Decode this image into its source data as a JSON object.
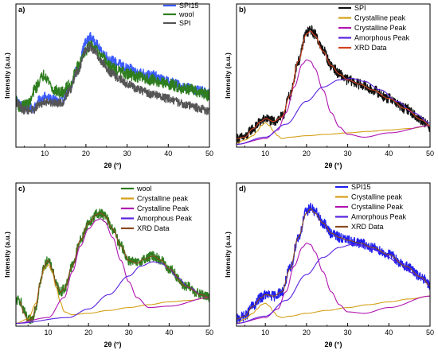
{
  "figure": {
    "background": "#ffffff"
  },
  "chart_data": [
    {
      "panel_label": "a)",
      "type": "line",
      "xlabel": "2θ (°)",
      "ylabel": "Intensity (a.u.)",
      "xlim": [
        3,
        50
      ],
      "ylim": [
        0,
        1
      ],
      "xticks": [
        10,
        20,
        30,
        40,
        50
      ],
      "grid": false,
      "legend_position": "top-right",
      "series": [
        {
          "name": "SPI15",
          "color": "#3b5bff",
          "noise": 0.035,
          "kind": "xrd",
          "x": [
            3,
            5,
            7,
            9,
            10,
            12,
            14,
            16,
            18,
            20,
            21,
            22,
            24,
            26,
            28,
            30,
            33,
            36,
            40,
            44,
            48,
            50
          ],
          "y": [
            0.33,
            0.27,
            0.27,
            0.33,
            0.35,
            0.33,
            0.32,
            0.4,
            0.55,
            0.73,
            0.77,
            0.74,
            0.66,
            0.61,
            0.58,
            0.55,
            0.52,
            0.5,
            0.46,
            0.42,
            0.39,
            0.37
          ]
        },
        {
          "name": "wool",
          "color": "#2e7d1e",
          "noise": 0.04,
          "kind": "xrd",
          "x": [
            3,
            4,
            6,
            8,
            9,
            10,
            11,
            12,
            14,
            16,
            18,
            20,
            21,
            22,
            24,
            26,
            28,
            30,
            33,
            36,
            40,
            44,
            48,
            50
          ],
          "y": [
            0.32,
            0.28,
            0.3,
            0.42,
            0.48,
            0.51,
            0.46,
            0.4,
            0.38,
            0.43,
            0.56,
            0.68,
            0.71,
            0.69,
            0.62,
            0.56,
            0.53,
            0.51,
            0.49,
            0.47,
            0.44,
            0.41,
            0.38,
            0.36
          ]
        },
        {
          "name": "SPI",
          "color": "#555555",
          "noise": 0.03,
          "kind": "xrd",
          "x": [
            3,
            5,
            7,
            9,
            10,
            12,
            14,
            16,
            18,
            20,
            21,
            22,
            24,
            26,
            28,
            30,
            33,
            36,
            40,
            44,
            48,
            50
          ],
          "y": [
            0.31,
            0.26,
            0.26,
            0.3,
            0.32,
            0.31,
            0.31,
            0.39,
            0.53,
            0.68,
            0.7,
            0.67,
            0.59,
            0.52,
            0.48,
            0.44,
            0.4,
            0.37,
            0.34,
            0.3,
            0.27,
            0.25
          ]
        }
      ]
    },
    {
      "panel_label": "b)",
      "type": "line",
      "xlabel": "2θ (°)",
      "ylabel": "Intensity (a.u.)",
      "xlim": [
        3,
        50
      ],
      "ylim": [
        0,
        1
      ],
      "xticks": [
        10,
        20,
        30,
        40,
        50
      ],
      "grid": false,
      "legend_position": "top-right",
      "series": [
        {
          "name": "SPI",
          "color": "#111111",
          "noise": 0.035,
          "kind": "xrd",
          "x": [
            3,
            5,
            7,
            9,
            10,
            12,
            14,
            16,
            18,
            20,
            21,
            22,
            24,
            26,
            28,
            30,
            33,
            36,
            40,
            44,
            48,
            50
          ],
          "y": [
            0.06,
            0.07,
            0.13,
            0.18,
            0.2,
            0.18,
            0.21,
            0.36,
            0.6,
            0.8,
            0.82,
            0.79,
            0.68,
            0.57,
            0.51,
            0.47,
            0.44,
            0.4,
            0.34,
            0.27,
            0.19,
            0.14
          ]
        },
        {
          "name": "Crystalline peak",
          "color": "#d4a017",
          "kind": "fit",
          "x": [
            3,
            5,
            7,
            8,
            9,
            10,
            11,
            12,
            13,
            14,
            16,
            20,
            25,
            30,
            35,
            40,
            45,
            50
          ],
          "y": [
            0.03,
            0.05,
            0.08,
            0.11,
            0.15,
            0.17,
            0.15,
            0.11,
            0.08,
            0.06,
            0.07,
            0.08,
            0.09,
            0.1,
            0.11,
            0.12,
            0.13,
            0.15
          ]
        },
        {
          "name": "Crystalline Peak",
          "color": "#b015b0",
          "kind": "fit",
          "x": [
            3,
            10,
            13,
            15,
            17,
            19,
            20,
            21,
            22,
            24,
            26,
            28,
            30,
            34,
            40,
            50
          ],
          "y": [
            0.02,
            0.06,
            0.12,
            0.24,
            0.42,
            0.58,
            0.61,
            0.6,
            0.55,
            0.4,
            0.24,
            0.14,
            0.09,
            0.07,
            0.1,
            0.15
          ]
        },
        {
          "name": "Amorphous Peak",
          "color": "#5a22e0",
          "kind": "fit",
          "x": [
            3,
            10,
            15,
            20,
            24,
            28,
            31,
            34,
            38,
            42,
            46,
            50
          ],
          "y": [
            0.02,
            0.07,
            0.16,
            0.32,
            0.42,
            0.47,
            0.48,
            0.46,
            0.4,
            0.32,
            0.24,
            0.17
          ]
        },
        {
          "name": "XRD Data",
          "color": "#d2421e",
          "kind": "fit",
          "x": [
            3,
            5,
            7,
            9,
            10,
            12,
            14,
            16,
            18,
            20,
            21,
            22,
            24,
            26,
            28,
            30,
            33,
            36,
            40,
            44,
            48,
            50
          ],
          "y": [
            0.06,
            0.07,
            0.13,
            0.18,
            0.2,
            0.18,
            0.21,
            0.36,
            0.6,
            0.79,
            0.81,
            0.78,
            0.67,
            0.57,
            0.51,
            0.47,
            0.44,
            0.4,
            0.34,
            0.27,
            0.19,
            0.15
          ]
        }
      ]
    },
    {
      "panel_label": "c)",
      "type": "line",
      "xlabel": "2θ (°)",
      "ylabel": "Intensity (a.u.)",
      "xlim": [
        2,
        50
      ],
      "ylim": [
        0,
        1
      ],
      "xticks": [
        10,
        20,
        30,
        40,
        50
      ],
      "grid": false,
      "legend_position": "top-right",
      "series": [
        {
          "name": "wool",
          "color": "#2e7d1e",
          "noise": 0.035,
          "kind": "xrd",
          "x": [
            3,
            4,
            5,
            6,
            7,
            8,
            9,
            10,
            11,
            12,
            13,
            14,
            16,
            18,
            20,
            22,
            23,
            24,
            26,
            28,
            30,
            32,
            34,
            36,
            38,
            40,
            44,
            48,
            50
          ],
          "y": [
            0.18,
            0.1,
            0.04,
            0.05,
            0.14,
            0.3,
            0.42,
            0.46,
            0.4,
            0.29,
            0.24,
            0.26,
            0.42,
            0.6,
            0.72,
            0.78,
            0.79,
            0.77,
            0.68,
            0.56,
            0.46,
            0.44,
            0.47,
            0.49,
            0.46,
            0.4,
            0.28,
            0.22,
            0.2
          ]
        },
        {
          "name": "Crystalline peak",
          "color": "#d4a017",
          "kind": "fit",
          "x": [
            2,
            5,
            7,
            8,
            9,
            10,
            11,
            12,
            13,
            14,
            16,
            20,
            25,
            30,
            35,
            40,
            45,
            50
          ],
          "y": [
            0.02,
            0.05,
            0.16,
            0.3,
            0.4,
            0.43,
            0.38,
            0.27,
            0.17,
            0.1,
            0.08,
            0.09,
            0.11,
            0.13,
            0.15,
            0.17,
            0.18,
            0.2
          ]
        },
        {
          "name": "Crystalline Peak",
          "color": "#b015b0",
          "kind": "fit",
          "x": [
            2,
            10,
            14,
            16,
            18,
            20,
            22,
            23,
            24,
            26,
            28,
            30,
            32,
            35,
            40,
            50
          ],
          "y": [
            0.02,
            0.06,
            0.2,
            0.38,
            0.56,
            0.68,
            0.74,
            0.75,
            0.73,
            0.62,
            0.46,
            0.31,
            0.2,
            0.13,
            0.14,
            0.2
          ]
        },
        {
          "name": "Amorphous Peak",
          "color": "#5a22e0",
          "kind": "fit",
          "x": [
            2,
            15,
            20,
            25,
            30,
            33,
            36,
            38,
            40,
            42,
            45,
            48,
            50
          ],
          "y": [
            0.02,
            0.06,
            0.12,
            0.22,
            0.35,
            0.42,
            0.45,
            0.44,
            0.4,
            0.34,
            0.27,
            0.22,
            0.2
          ]
        },
        {
          "name": "XRD Data",
          "color": "#8b4a1e",
          "kind": "fit",
          "x": [
            3,
            4,
            5,
            6,
            7,
            8,
            9,
            10,
            11,
            12,
            13,
            14,
            16,
            18,
            20,
            22,
            23,
            24,
            26,
            28,
            30,
            32,
            34,
            36,
            38,
            40,
            44,
            48,
            50
          ],
          "y": [
            0.17,
            0.09,
            0.04,
            0.05,
            0.14,
            0.3,
            0.42,
            0.46,
            0.4,
            0.29,
            0.24,
            0.26,
            0.42,
            0.6,
            0.72,
            0.78,
            0.79,
            0.77,
            0.68,
            0.56,
            0.46,
            0.44,
            0.47,
            0.49,
            0.46,
            0.4,
            0.28,
            0.22,
            0.2
          ]
        }
      ]
    },
    {
      "panel_label": "d)",
      "type": "line",
      "xlabel": "2θ (°)",
      "ylabel": "Intensity (a.u.)",
      "xlim": [
        3,
        50
      ],
      "ylim": [
        0,
        1
      ],
      "xticks": [
        10,
        20,
        30,
        40,
        50
      ],
      "grid": false,
      "legend_position": "top-right",
      "series": [
        {
          "name": "SPI15",
          "color": "#2020ee",
          "noise": 0.035,
          "kind": "xrd",
          "x": [
            3,
            5,
            7,
            9,
            10,
            12,
            14,
            16,
            18,
            20,
            21,
            22,
            24,
            26,
            28,
            30,
            33,
            36,
            40,
            44,
            48,
            50
          ],
          "y": [
            0.05,
            0.07,
            0.14,
            0.2,
            0.22,
            0.21,
            0.24,
            0.4,
            0.62,
            0.8,
            0.83,
            0.8,
            0.72,
            0.65,
            0.62,
            0.6,
            0.58,
            0.55,
            0.5,
            0.42,
            0.34,
            0.28
          ]
        },
        {
          "name": "Crystalline peak",
          "color": "#d4a017",
          "kind": "fit",
          "x": [
            3,
            5,
            7,
            8,
            9,
            10,
            11,
            12,
            13,
            14,
            16,
            20,
            25,
            30,
            35,
            40,
            45,
            50
          ],
          "y": [
            0.02,
            0.05,
            0.09,
            0.12,
            0.15,
            0.16,
            0.14,
            0.1,
            0.07,
            0.06,
            0.07,
            0.09,
            0.11,
            0.13,
            0.15,
            0.17,
            0.19,
            0.21
          ]
        },
        {
          "name": "Crystalline Peak",
          "color": "#b015b0",
          "kind": "fit",
          "x": [
            3,
            10,
            13,
            15,
            17,
            19,
            20,
            21,
            22,
            24,
            26,
            28,
            30,
            34,
            40,
            50
          ],
          "y": [
            0.02,
            0.06,
            0.12,
            0.24,
            0.42,
            0.55,
            0.58,
            0.57,
            0.52,
            0.38,
            0.24,
            0.15,
            0.1,
            0.09,
            0.13,
            0.21
          ]
        },
        {
          "name": "Amorphous Peak",
          "color": "#5a22e0",
          "kind": "fit",
          "x": [
            3,
            10,
            15,
            20,
            24,
            28,
            31,
            34,
            38,
            42,
            46,
            50
          ],
          "y": [
            0.02,
            0.07,
            0.18,
            0.36,
            0.48,
            0.55,
            0.57,
            0.56,
            0.52,
            0.45,
            0.37,
            0.3
          ]
        },
        {
          "name": "XRD Data",
          "color": "#8b4a1e",
          "kind": "fit",
          "x": [
            3,
            5,
            7,
            9,
            10,
            12,
            14,
            16,
            18,
            20,
            21,
            22,
            24,
            26,
            28,
            30,
            33,
            36,
            40,
            44,
            48,
            50
          ],
          "y": [
            0.05,
            0.07,
            0.14,
            0.2,
            0.22,
            0.21,
            0.24,
            0.4,
            0.62,
            0.79,
            0.82,
            0.79,
            0.72,
            0.65,
            0.62,
            0.6,
            0.58,
            0.55,
            0.5,
            0.42,
            0.34,
            0.28
          ]
        }
      ]
    }
  ]
}
